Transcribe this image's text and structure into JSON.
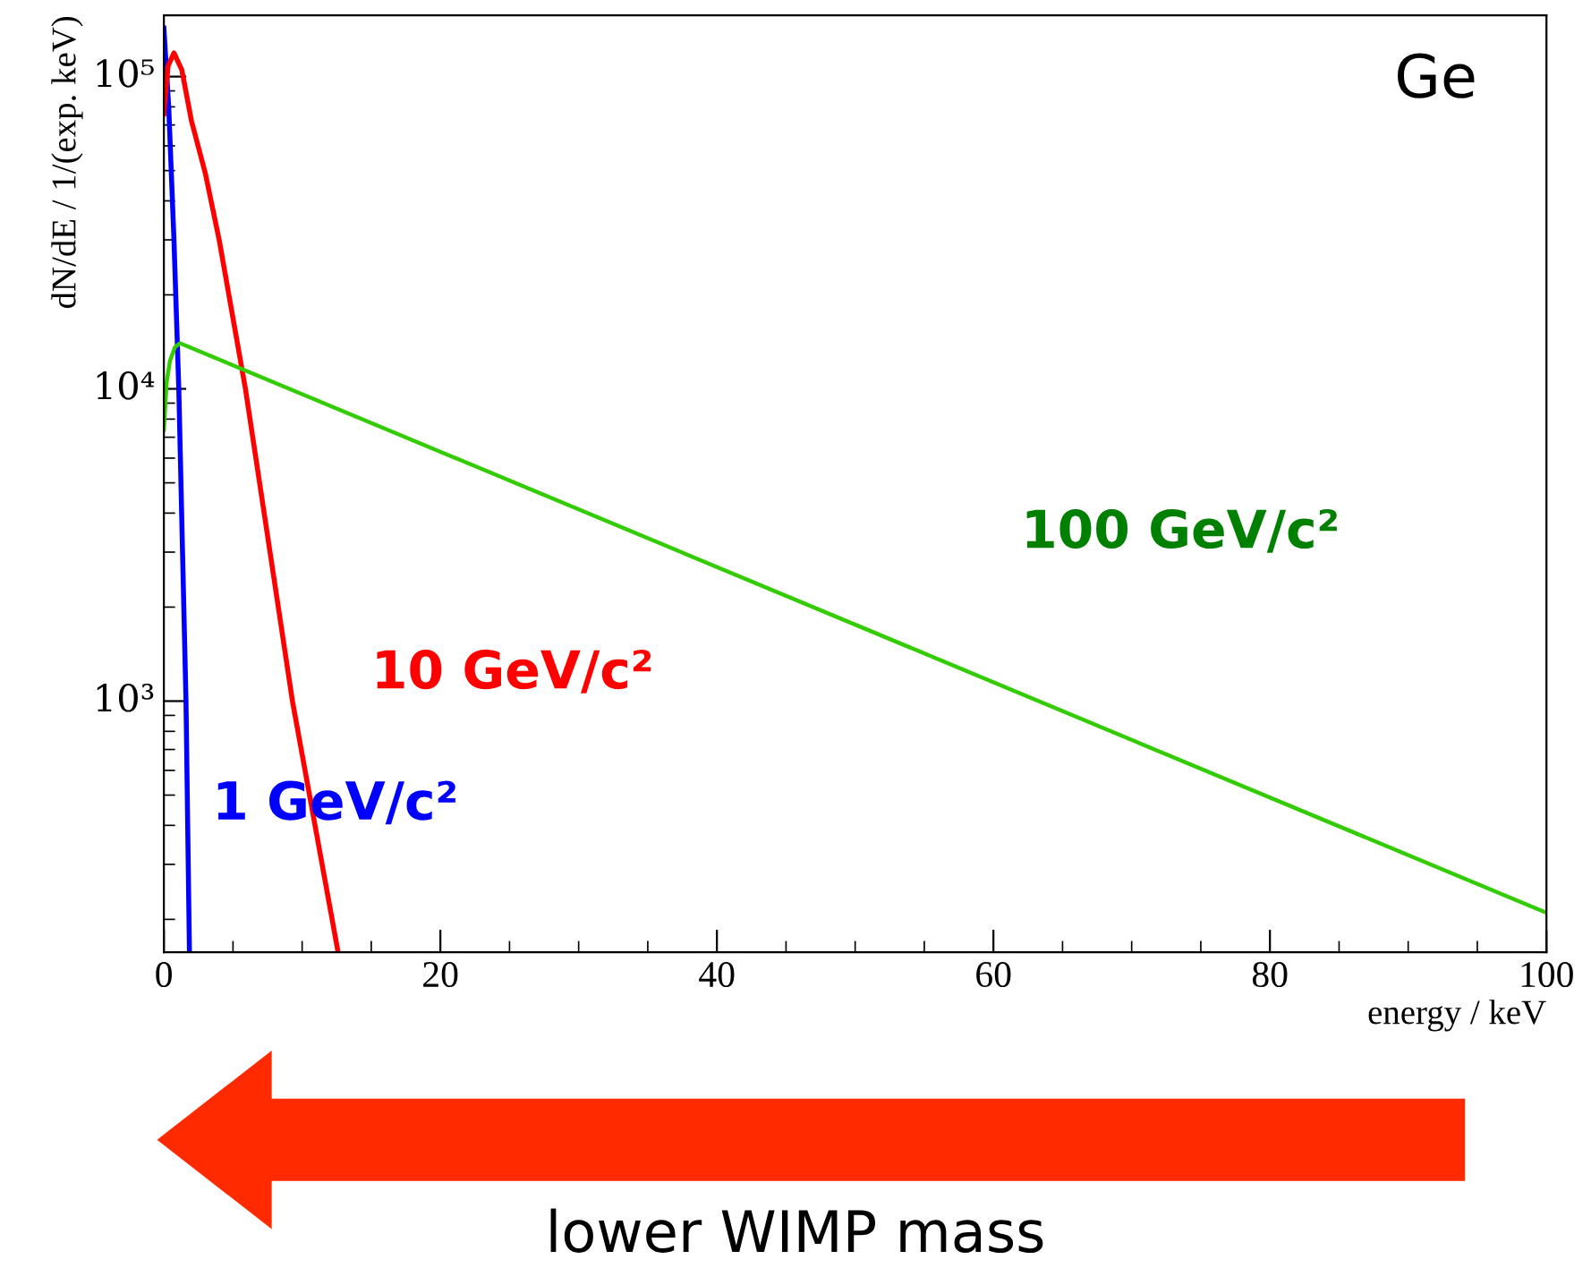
{
  "chart_data": {
    "type": "line",
    "xlabel": "energy / keV",
    "ylabel": "dN/dE / 1/(exp. keV)",
    "log": "y",
    "marker": "none",
    "xlim": [
      0,
      100
    ],
    "xticks": [
      0,
      20,
      40,
      60,
      80,
      100
    ],
    "ylim": [
      157,
      157000
    ],
    "yticks": [
      {
        "value": 1000,
        "label": "10³"
      },
      {
        "value": 10000,
        "label": "10⁴"
      },
      {
        "value": 100000,
        "label": "10⁵"
      }
    ],
    "series": [
      {
        "name": "1 GeV/c²",
        "color": "#0000ff",
        "x": [
          0,
          0.35,
          0.73,
          1.08,
          1.35,
          1.6,
          1.85
        ],
        "values": [
          143000,
          80000,
          30000,
          10000,
          3000,
          1000,
          157
        ]
      },
      {
        "name": "10 GeV/c²",
        "color": "#ff0000",
        "x": [
          0,
          0.3,
          0.73,
          1.3,
          2,
          3,
          4,
          5.9,
          9.3,
          12.6
        ],
        "values": [
          76000,
          108000,
          119000,
          105000,
          72000,
          49000,
          30000,
          10000,
          1000,
          157
        ]
      },
      {
        "name": "100 GeV/c²",
        "color": "#33cc00",
        "x": [
          0,
          0.2,
          0.44,
          0.8,
          1.16,
          100
        ],
        "values": [
          7400,
          10500,
          12300,
          13600,
          14000,
          210
        ]
      }
    ],
    "annotations": [
      "Ge",
      "lower WIMP mass"
    ]
  }
}
